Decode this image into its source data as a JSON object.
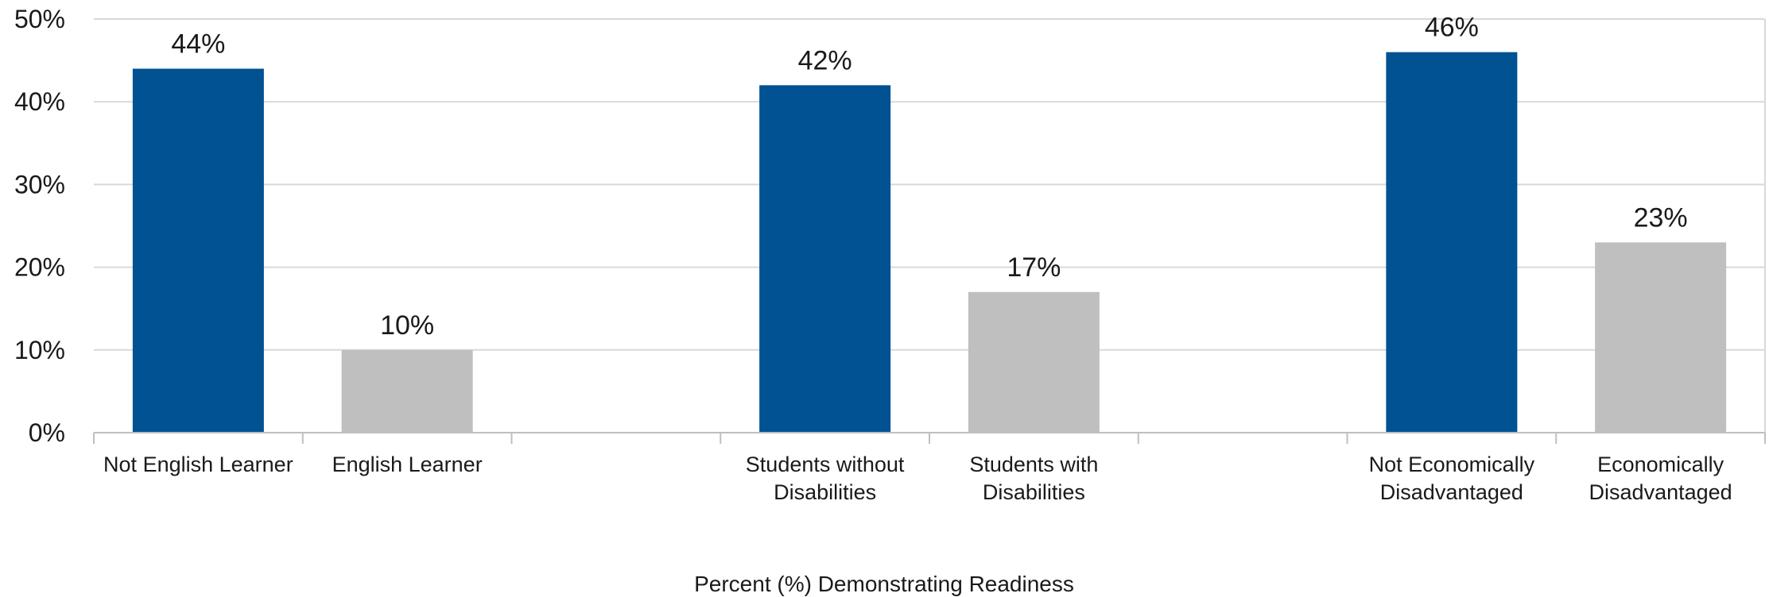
{
  "chart_data": {
    "type": "bar",
    "categories": [
      [
        "Not English Learner"
      ],
      [
        "English Learner"
      ],
      [],
      [
        "Students without",
        "Disabilities"
      ],
      [
        "Students with",
        "Disabilities"
      ],
      [],
      [
        "Not Economically",
        "Disadvantaged"
      ],
      [
        "Economically",
        "Disadvantaged"
      ]
    ],
    "values": [
      44,
      10,
      null,
      42,
      17,
      null,
      46,
      23
    ],
    "bar_colors": [
      "#005293",
      "#bfbfbf",
      null,
      "#005293",
      "#bfbfbf",
      null,
      "#005293",
      "#bfbfbf"
    ],
    "data_labels": [
      "44%",
      "10%",
      "",
      "42%",
      "17%",
      "",
      "46%",
      "23%"
    ],
    "y_ticks": [
      {
        "value": 0,
        "label": "0%"
      },
      {
        "value": 10,
        "label": "10%"
      },
      {
        "value": 20,
        "label": "20%"
      },
      {
        "value": 30,
        "label": "30%"
      },
      {
        "value": 40,
        "label": "40%"
      },
      {
        "value": 50,
        "label": "50%"
      }
    ],
    "ylim": [
      0,
      50
    ],
    "title": "",
    "xlabel": "Percent (%) Demonstrating Readiness",
    "ylabel": "",
    "grid": true,
    "legend": "none",
    "grid_color": "#d9d9d9",
    "axis_color": "#bfbfbf"
  }
}
